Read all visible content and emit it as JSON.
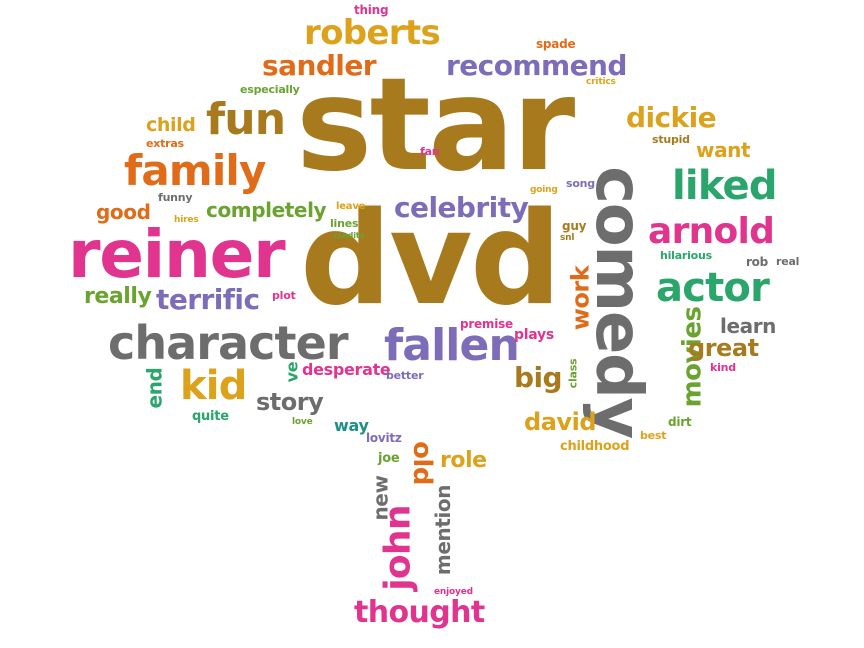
{
  "palette": {
    "brown": "#a87a1e",
    "pink": "#e0348f",
    "orange": "#e06c1a",
    "green": "#2aa56b",
    "purple": "#7d6cb8",
    "gray": "#6d6d6d",
    "gold": "#dca21c",
    "lime": "#6aa32f",
    "teal": "#1f8f8a"
  },
  "words": [
    {
      "text": "star"
    },
    {
      "text": "dvd"
    },
    {
      "text": "reiner"
    },
    {
      "text": "comedy"
    },
    {
      "text": "character"
    },
    {
      "text": "family"
    },
    {
      "text": "fun"
    },
    {
      "text": "fallen"
    },
    {
      "text": "actor"
    },
    {
      "text": "liked"
    },
    {
      "text": "arnold"
    },
    {
      "text": "roberts"
    },
    {
      "text": "sandler"
    },
    {
      "text": "recommend"
    },
    {
      "text": "dickie"
    },
    {
      "text": "celebrity"
    },
    {
      "text": "terrific"
    },
    {
      "text": "kid"
    },
    {
      "text": "completely"
    },
    {
      "text": "really"
    },
    {
      "text": "child"
    },
    {
      "text": "good"
    },
    {
      "text": "want"
    },
    {
      "text": "movies"
    },
    {
      "text": "great"
    },
    {
      "text": "work"
    },
    {
      "text": "big"
    },
    {
      "text": "david"
    },
    {
      "text": "story"
    },
    {
      "text": "john"
    },
    {
      "text": "thought"
    },
    {
      "text": "learn"
    },
    {
      "text": "role"
    },
    {
      "text": "old"
    },
    {
      "text": "mention"
    },
    {
      "text": "new"
    },
    {
      "text": "end"
    },
    {
      "text": "ve"
    },
    {
      "text": "desperate"
    },
    {
      "text": "plays"
    },
    {
      "text": "premise"
    },
    {
      "text": "thing"
    },
    {
      "text": "spade"
    },
    {
      "text": "critics"
    },
    {
      "text": "especially"
    },
    {
      "text": "extras"
    },
    {
      "text": "fan"
    },
    {
      "text": "stupid"
    },
    {
      "text": "funny"
    },
    {
      "text": "hires"
    },
    {
      "text": "leave"
    },
    {
      "text": "lines"
    },
    {
      "text": "credits"
    },
    {
      "text": "going"
    },
    {
      "text": "song"
    },
    {
      "text": "guy"
    },
    {
      "text": "snl"
    },
    {
      "text": "hilarious"
    },
    {
      "text": "rob"
    },
    {
      "text": "real"
    },
    {
      "text": "plot"
    },
    {
      "text": "better"
    },
    {
      "text": "class"
    },
    {
      "text": "kind"
    },
    {
      "text": "dirt"
    },
    {
      "text": "best"
    },
    {
      "text": "childhood"
    },
    {
      "text": "quite"
    },
    {
      "text": "love"
    },
    {
      "text": "way"
    },
    {
      "text": "lovitz"
    },
    {
      "text": "joe"
    },
    {
      "text": "enjoyed"
    }
  ]
}
